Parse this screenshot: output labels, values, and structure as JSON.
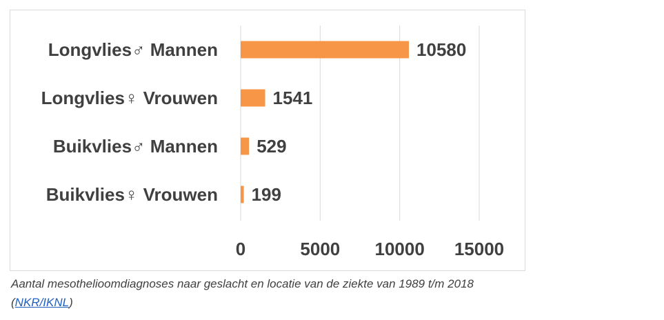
{
  "chart_data": {
    "type": "bar",
    "orientation": "horizontal",
    "categories": [
      "Longvlies♂ Mannen",
      "Longvlies♀ Vrouwen",
      "Buikvlies♂ Mannen",
      "Buikvlies♀ Vrouwen"
    ],
    "values": [
      10580,
      1541,
      529,
      199
    ],
    "xlim": [
      0,
      15000
    ],
    "xticks": [
      0,
      5000,
      10000,
      15000
    ],
    "grid": true,
    "bar_color": "#f79646",
    "grid_color": "#d9d9d9",
    "data_labels": true
  },
  "caption": {
    "text": "Aantal mesothelioomdiagnoses naar geslacht en locatie van de ziekte van  1989 t/m 2018",
    "open_paren": "(",
    "link_text": "NKR/IKNL",
    "close_paren": ")"
  }
}
